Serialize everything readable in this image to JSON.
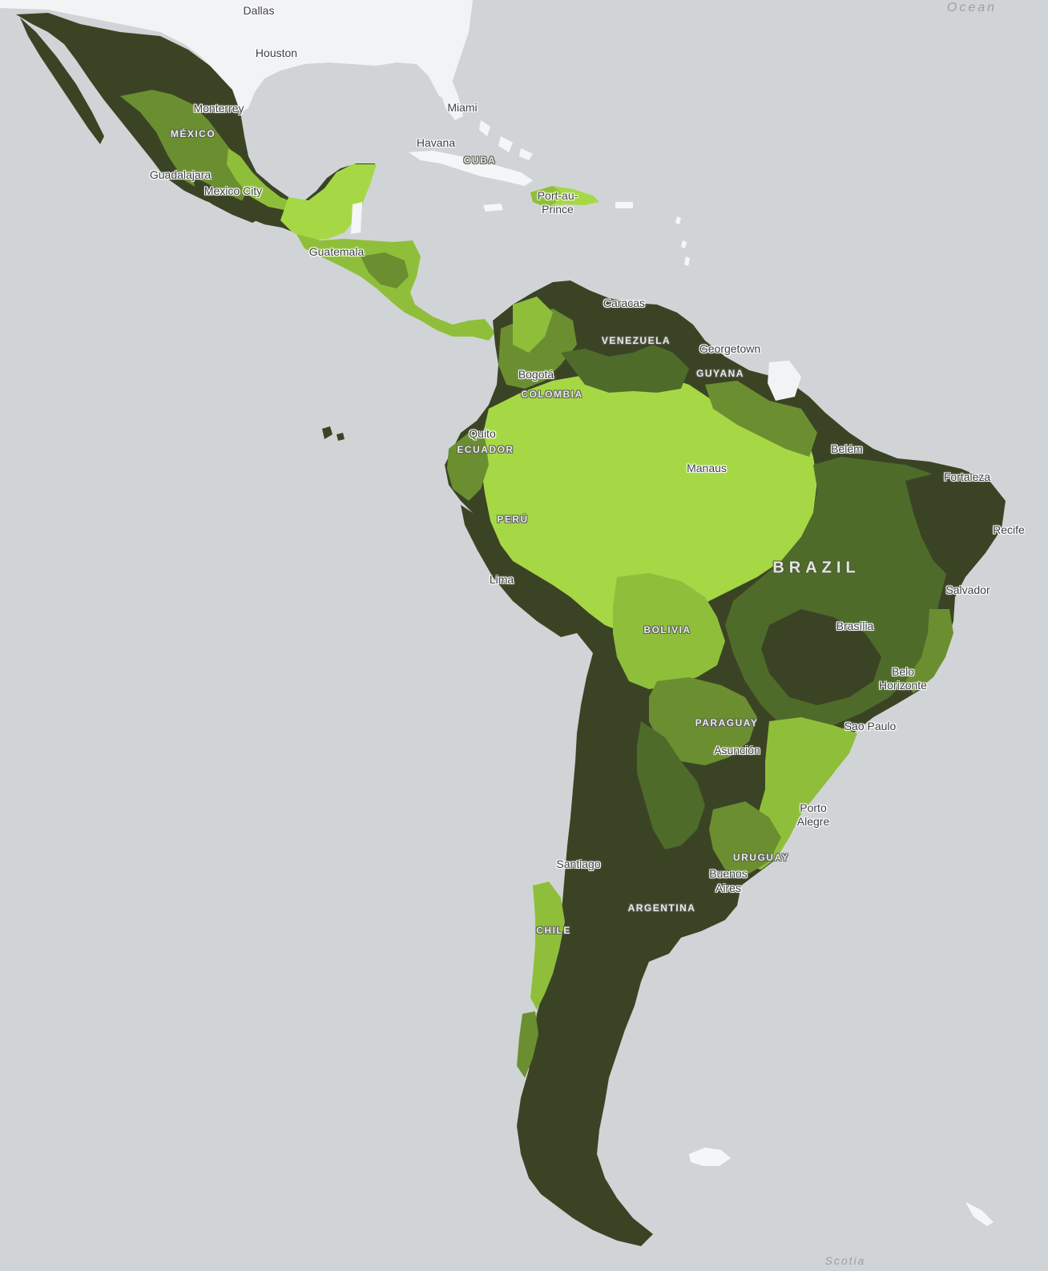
{
  "map": {
    "colors": {
      "water": "#d1d4d6",
      "us_land": "#f2f3f4",
      "caribbean_land": "#f5f6f7",
      "dark_green": "#3a4425",
      "mid_dark_green": "#4f6b2a",
      "mid_green": "#6b8f30",
      "light_green": "#8fbf3a",
      "bright_green": "#a6d846"
    },
    "ocean_labels": {
      "atlantic": "Ocean",
      "scotia": "Scotia"
    },
    "cities": {
      "dallas": "Dallas",
      "houston": "Houston",
      "monterrey": "Monterrey",
      "guadalajara": "Guadalajara",
      "mexico_city": "Mexico City",
      "miami": "Miami",
      "havana": "Havana",
      "port_au_prince_1": "Port-au-",
      "port_au_prince_2": "Prince",
      "guatemala": "Guatemala",
      "caracas": "Caracas",
      "georgetown": "Georgetown",
      "bogota": "Bogotá",
      "quito": "Quito",
      "manaus": "Manaus",
      "belem": "Belém",
      "fortaleza": "Fortaleza",
      "recife": "Recife",
      "lima": "Lima",
      "salvador": "Salvador",
      "brasilia": "Brasília",
      "belo_horizonte_1": "Belo",
      "belo_horizonte_2": "Horizonte",
      "sao_paulo": "Sao Paulo",
      "asuncion": "Asunción",
      "porto_alegre_1": "Porto",
      "porto_alegre_2": "Alegre",
      "santiago": "Santiago",
      "buenos_aires_1": "Buenos",
      "buenos_aires_2": "Aires"
    },
    "countries": {
      "mexico": "MÉXICO",
      "cuba": "CUBA",
      "venezuela": "VENEZUELA",
      "guyana": "GUYANA",
      "colombia": "COLOMBIA",
      "ecuador": "ECUADOR",
      "peru": "PERÚ",
      "brazil": "BRAZIL",
      "bolivia": "BOLIVIA",
      "paraguay": "PARAGUAY",
      "uruguay": "URUGUAY",
      "argentina": "ARGENTINA",
      "chile": "CHILE"
    }
  }
}
